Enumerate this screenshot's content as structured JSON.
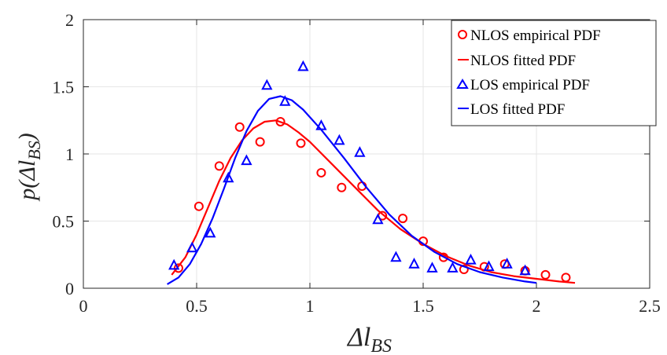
{
  "chart_data": {
    "type": "scatter",
    "xlim": [
      0,
      2.5
    ],
    "ylim": [
      0,
      2
    ],
    "x_ticks": [
      "0",
      "0.5",
      "1",
      "1.5",
      "2",
      "2.5"
    ],
    "y_ticks": [
      "0",
      "0.5",
      "1",
      "1.5",
      "2"
    ],
    "xlabel": {
      "main": "Δl",
      "sub": "BS"
    },
    "ylabel": {
      "pre": "p(Δl",
      "sub": "BS",
      "post": ")"
    },
    "grid": true,
    "legend_position": "top-right",
    "series": [
      {
        "name": "NLOS empirical PDF",
        "kind": "marker",
        "marker": "circle",
        "color": "#ff0000",
        "points": [
          [
            0.42,
            0.15
          ],
          [
            0.51,
            0.61
          ],
          [
            0.6,
            0.91
          ],
          [
            0.69,
            1.2
          ],
          [
            0.78,
            1.09
          ],
          [
            0.87,
            1.24
          ],
          [
            0.96,
            1.08
          ],
          [
            1.05,
            0.86
          ],
          [
            1.14,
            0.75
          ],
          [
            1.23,
            0.76
          ],
          [
            1.32,
            0.54
          ],
          [
            1.41,
            0.52
          ],
          [
            1.5,
            0.35
          ],
          [
            1.59,
            0.23
          ],
          [
            1.68,
            0.14
          ],
          [
            1.77,
            0.16
          ],
          [
            1.86,
            0.18
          ],
          [
            1.95,
            0.13
          ],
          [
            2.04,
            0.1
          ],
          [
            2.13,
            0.08
          ]
        ]
      },
      {
        "name": "NLOS fitted PDF",
        "kind": "line",
        "color": "#ff0000",
        "points": [
          [
            0.39,
            0.1
          ],
          [
            0.45,
            0.23
          ],
          [
            0.5,
            0.4
          ],
          [
            0.55,
            0.6
          ],
          [
            0.6,
            0.8
          ],
          [
            0.65,
            0.97
          ],
          [
            0.7,
            1.1
          ],
          [
            0.75,
            1.19
          ],
          [
            0.8,
            1.24
          ],
          [
            0.85,
            1.25
          ],
          [
            0.9,
            1.22
          ],
          [
            0.95,
            1.16
          ],
          [
            1.0,
            1.09
          ],
          [
            1.1,
            0.92
          ],
          [
            1.2,
            0.75
          ],
          [
            1.3,
            0.58
          ],
          [
            1.4,
            0.44
          ],
          [
            1.5,
            0.33
          ],
          [
            1.6,
            0.24
          ],
          [
            1.7,
            0.17
          ],
          [
            1.8,
            0.12
          ],
          [
            1.9,
            0.09
          ],
          [
            2.0,
            0.07
          ],
          [
            2.1,
            0.05
          ],
          [
            2.17,
            0.04
          ]
        ]
      },
      {
        "name": "LOS empirical PDF",
        "kind": "marker",
        "marker": "triangle",
        "color": "#0000ff",
        "points": [
          [
            0.4,
            0.17
          ],
          [
            0.48,
            0.3
          ],
          [
            0.56,
            0.41
          ],
          [
            0.64,
            0.82
          ],
          [
            0.72,
            0.95
          ],
          [
            0.81,
            1.51
          ],
          [
            0.89,
            1.39
          ],
          [
            0.97,
            1.65
          ],
          [
            1.05,
            1.21
          ],
          [
            1.13,
            1.1
          ],
          [
            1.22,
            1.01
          ],
          [
            1.3,
            0.51
          ],
          [
            1.38,
            0.23
          ],
          [
            1.46,
            0.18
          ],
          [
            1.54,
            0.15
          ],
          [
            1.63,
            0.15
          ],
          [
            1.71,
            0.21
          ],
          [
            1.79,
            0.16
          ],
          [
            1.87,
            0.18
          ],
          [
            1.95,
            0.13
          ]
        ]
      },
      {
        "name": "LOS fitted PDF",
        "kind": "line",
        "color": "#0000ff",
        "points": [
          [
            0.37,
            0.03
          ],
          [
            0.42,
            0.08
          ],
          [
            0.47,
            0.18
          ],
          [
            0.52,
            0.33
          ],
          [
            0.57,
            0.52
          ],
          [
            0.62,
            0.74
          ],
          [
            0.67,
            0.97
          ],
          [
            0.72,
            1.17
          ],
          [
            0.77,
            1.32
          ],
          [
            0.82,
            1.41
          ],
          [
            0.87,
            1.43
          ],
          [
            0.92,
            1.4
          ],
          [
            0.97,
            1.33
          ],
          [
            1.05,
            1.18
          ],
          [
            1.15,
            0.97
          ],
          [
            1.25,
            0.75
          ],
          [
            1.35,
            0.55
          ],
          [
            1.45,
            0.39
          ],
          [
            1.55,
            0.27
          ],
          [
            1.65,
            0.18
          ],
          [
            1.75,
            0.12
          ],
          [
            1.85,
            0.08
          ],
          [
            1.95,
            0.05
          ],
          [
            2.0,
            0.04
          ]
        ]
      }
    ]
  }
}
